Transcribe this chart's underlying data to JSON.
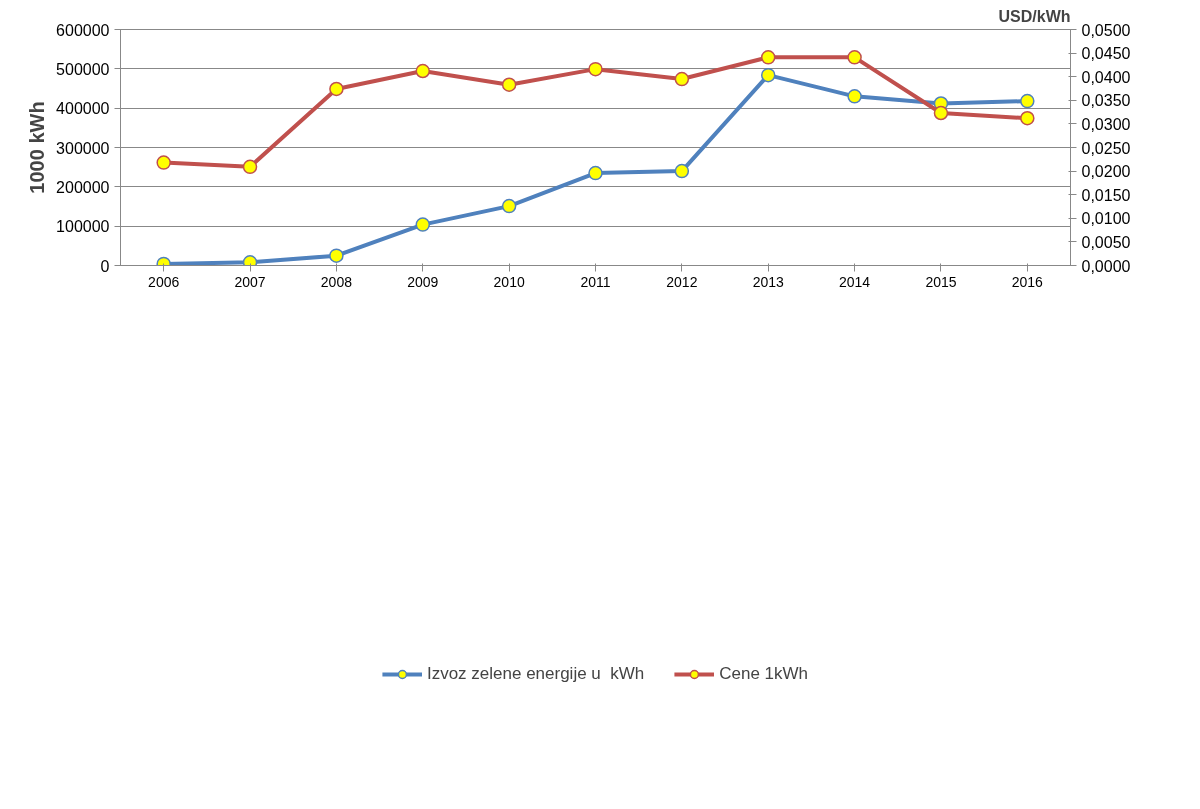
{
  "chart_data": {
    "type": "line",
    "ylabel": "1000 kWh",
    "y2label": "USD/kWh",
    "categories": [
      "2006",
      "2007",
      "2008",
      "2009",
      "2010",
      "2011",
      "2012",
      "2013",
      "2014",
      "2015",
      "2016"
    ],
    "series": [
      {
        "name": "Izvoz zelene energije u  kWh",
        "color": "#4f81bd",
        "values": [
          4000,
          8000,
          25000,
          104000,
          151000,
          235000,
          240000,
          484000,
          430000,
          412000,
          418000
        ]
      },
      {
        "name": "Cene 1kWh",
        "color": "#c0504d",
        "axis": "y2",
        "values": [
          0.0218,
          0.0209,
          0.0374,
          0.0412,
          0.0383,
          0.0416,
          0.0395,
          0.0441,
          0.0441,
          0.0323,
          0.0312
        ]
      }
    ],
    "ylim": [
      0,
      600000
    ],
    "yticks": [
      0,
      100000,
      200000,
      300000,
      400000,
      500000,
      600000
    ],
    "y2lim": [
      0,
      0.05
    ],
    "y2ticks": [
      {
        "value": 0,
        "label": "0,0000"
      },
      {
        "value": 0.005,
        "label": "0,0050"
      },
      {
        "value": 0.01,
        "label": "0,0100"
      },
      {
        "value": 0.015,
        "label": "0,0150"
      },
      {
        "value": 0.02,
        "label": "0,0200"
      },
      {
        "value": 0.025,
        "label": "0,0250"
      },
      {
        "value": 0.03,
        "label": "0,0300"
      },
      {
        "value": 0.035,
        "label": "0,0350"
      },
      {
        "value": 0.04,
        "label": "0,0400"
      },
      {
        "value": 0.045,
        "label": "0,0450"
      },
      {
        "value": 0.05,
        "label": "0,0500"
      }
    ],
    "grid": "y",
    "legend": "bottom",
    "marker": "circle",
    "line_style": "solid"
  }
}
